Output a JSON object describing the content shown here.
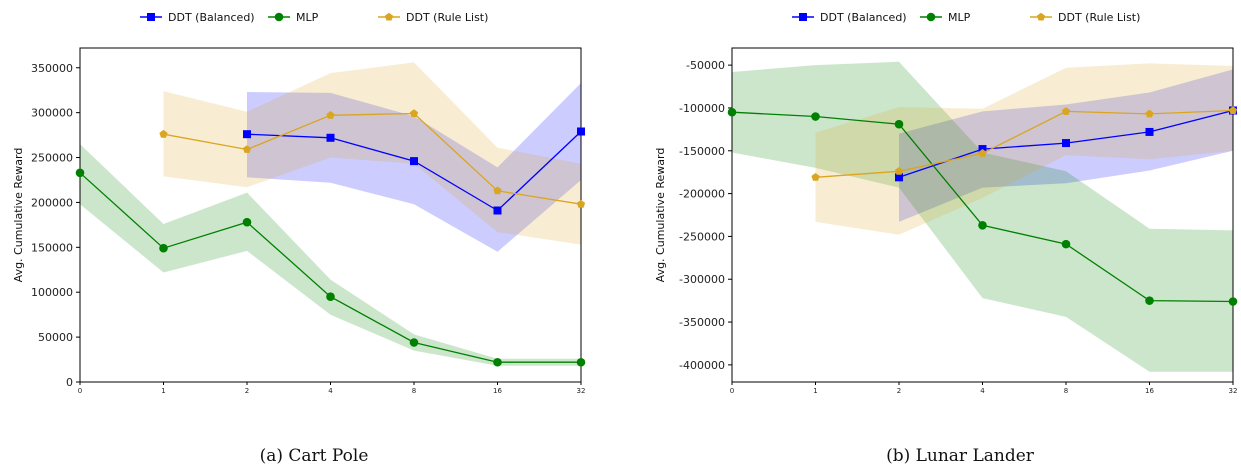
{
  "chart_data": [
    {
      "type": "line",
      "caption": "(a) Cart Pole",
      "ylabel": "Avg. Cumulative Reward",
      "xlabel": "",
      "x_ticks": [
        "0",
        "1",
        "2",
        "4",
        "8",
        "16",
        "32"
      ],
      "y_ticks": [
        "0",
        "50000",
        "100000",
        "150000",
        "200000",
        "250000",
        "300000",
        "350000"
      ],
      "ylim": [
        0,
        372000
      ],
      "legend_position": "top-center",
      "series": [
        {
          "name": "DDT (Balanced)",
          "color": "#0000ff",
          "band_color": "#0000ff",
          "marker": "square",
          "x": [
            2,
            4,
            8,
            16,
            32
          ],
          "y": [
            276000,
            272000,
            246000,
            191000,
            279000
          ],
          "lower": [
            228000,
            222000,
            198000,
            145000,
            225000
          ],
          "upper": [
            323000,
            322000,
            296000,
            239000,
            333000
          ]
        },
        {
          "name": "MLP",
          "color": "#008000",
          "band_color": "#008000",
          "marker": "circle",
          "x": [
            0,
            1,
            2,
            4,
            8,
            16,
            32
          ],
          "y": [
            233000,
            149000,
            178000,
            95000,
            44000,
            22000,
            22000
          ],
          "lower": [
            198000,
            122000,
            146000,
            75000,
            35000,
            18000,
            18000
          ],
          "upper": [
            265000,
            176000,
            211000,
            114000,
            53000,
            26000,
            26000
          ]
        },
        {
          "name": "DDT (Rule List)",
          "color": "#daa520",
          "band_color": "#daa520",
          "marker": "pentagon",
          "x": [
            1,
            2,
            4,
            8,
            16,
            32
          ],
          "y": [
            276000,
            259000,
            297000,
            299000,
            213000,
            198000
          ],
          "lower": [
            229000,
            217000,
            250000,
            243000,
            167000,
            153000
          ],
          "upper": [
            324000,
            301000,
            344000,
            356000,
            261000,
            243000
          ]
        }
      ]
    },
    {
      "type": "line",
      "caption": "(b) Lunar Lander",
      "ylabel": "Avg. Cumulative Reward",
      "xlabel": "",
      "x_ticks": [
        "0",
        "1",
        "2",
        "4",
        "8",
        "16",
        "32"
      ],
      "y_ticks": [
        "-50000",
        "-100000",
        "-150000",
        "-200000",
        "-250000",
        "-300000",
        "-350000",
        "-400000"
      ],
      "ylim": [
        -420000,
        -30000
      ],
      "legend_position": "top-center",
      "series": [
        {
          "name": "DDT (Balanced)",
          "color": "#0000ff",
          "band_color": "#0000ff",
          "marker": "square",
          "x": [
            2,
            4,
            8,
            16,
            32
          ],
          "y": [
            -181000,
            -148000,
            -141000,
            -128000,
            -103000
          ],
          "lower": [
            -233000,
            -193000,
            -188000,
            -173000,
            -150000
          ],
          "upper": [
            -130000,
            -104000,
            -96000,
            -82000,
            -55000
          ]
        },
        {
          "name": "MLP",
          "color": "#008000",
          "band_color": "#008000",
          "marker": "circle",
          "x": [
            0,
            1,
            2,
            4,
            8,
            16,
            32
          ],
          "y": [
            -105000,
            -110000,
            -119000,
            -237000,
            -259000,
            -325000,
            -326000
          ],
          "lower": [
            -152000,
            -170000,
            -193000,
            -322000,
            -344000,
            -408000,
            -408000
          ],
          "upper": [
            -58000,
            -50000,
            -46000,
            -152000,
            -174000,
            -241000,
            -243000
          ]
        },
        {
          "name": "DDT (Rule List)",
          "color": "#daa520",
          "band_color": "#daa520",
          "marker": "pentagon",
          "x": [
            1,
            2,
            4,
            8,
            16,
            32
          ],
          "y": [
            -181000,
            -174000,
            -153000,
            -104000,
            -107000,
            -103000
          ],
          "lower": [
            -233000,
            -248000,
            -205000,
            -155000,
            -160000,
            -150000
          ],
          "upper": [
            -129000,
            -99000,
            -101000,
            -53000,
            -48000,
            -51000
          ]
        }
      ]
    }
  ]
}
